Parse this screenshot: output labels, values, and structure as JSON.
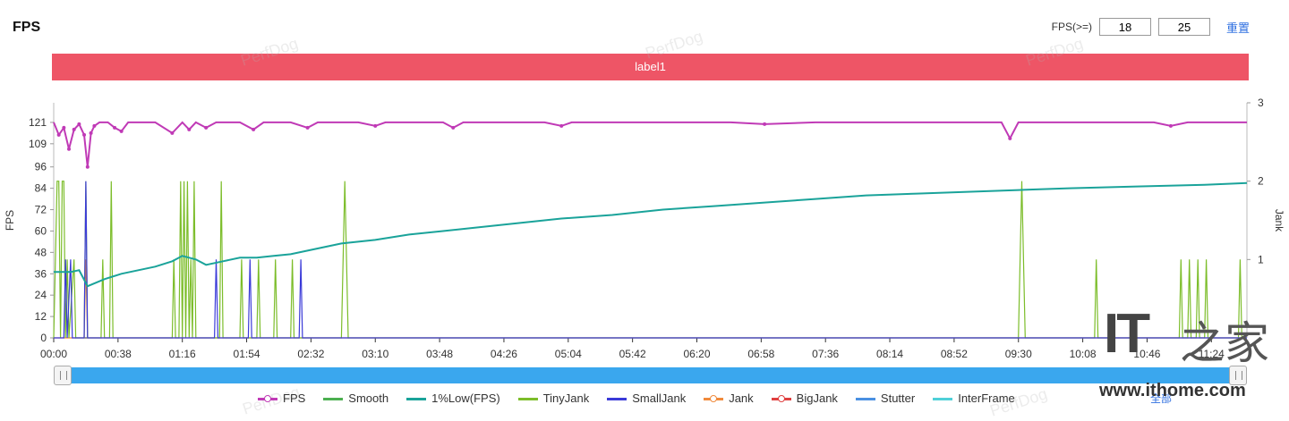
{
  "header": {
    "title": "FPS",
    "fps_label": "FPS(>=)",
    "fps_low": "18",
    "fps_high": "25",
    "reset_label": "重置"
  },
  "label_bar": {
    "text": "label1"
  },
  "watermark": "PerfDog",
  "logo": {
    "it": "IT",
    "cn": "之家",
    "url": "www.ithome.com"
  },
  "zoom_link": "全部",
  "colors": {
    "fps": "#c03ab6",
    "smooth": "#4caf50",
    "low": "#1aa39a",
    "tiny": "#7cbd2a",
    "small": "#3a3ad8",
    "jank": "#f08a3c",
    "big": "#e04040",
    "stutter": "#4a90e2",
    "inter": "#4fd0d8"
  },
  "legend": [
    {
      "name": "FPS",
      "color": "#c03ab6",
      "dot": true
    },
    {
      "name": "Smooth",
      "color": "#4caf50",
      "dot": false
    },
    {
      "name": "1%Low(FPS)",
      "color": "#1aa39a",
      "dot": false
    },
    {
      "name": "TinyJank",
      "color": "#7cbd2a",
      "dot": false
    },
    {
      "name": "SmallJank",
      "color": "#3a3ad8",
      "dot": false
    },
    {
      "name": "Jank",
      "color": "#f08a3c",
      "dot": true
    },
    {
      "name": "BigJank",
      "color": "#e04040",
      "dot": true
    },
    {
      "name": "Stutter",
      "color": "#4a90e2",
      "dot": false
    },
    {
      "name": "InterFrame",
      "color": "#4fd0d8",
      "dot": false
    }
  ],
  "chart_data": {
    "type": "line",
    "ylabel": "FPS",
    "y2label": "Jank",
    "y_ticks": [
      0,
      12,
      24,
      36,
      48,
      60,
      72,
      84,
      96,
      109,
      121
    ],
    "ylim": [
      0,
      132
    ],
    "y2_ticks": [
      1,
      2,
      3
    ],
    "y2lim": [
      0,
      3
    ],
    "x_ticks": [
      "00:00",
      "00:38",
      "01:16",
      "01:54",
      "02:32",
      "03:10",
      "03:48",
      "04:26",
      "05:04",
      "05:42",
      "06:20",
      "06:58",
      "07:36",
      "08:14",
      "08:52",
      "09:30",
      "10:08",
      "10:46",
      "11:24"
    ],
    "xlim_seconds": [
      0,
      705
    ],
    "series": [
      {
        "name": "FPS",
        "axis": "left",
        "points": [
          [
            0,
            121
          ],
          [
            3,
            114
          ],
          [
            6,
            118
          ],
          [
            9,
            106
          ],
          [
            12,
            117
          ],
          [
            15,
            120
          ],
          [
            18,
            114
          ],
          [
            20,
            96
          ],
          [
            22,
            115
          ],
          [
            24,
            119
          ],
          [
            27,
            121
          ],
          [
            32,
            121
          ],
          [
            36,
            118
          ],
          [
            40,
            116
          ],
          [
            44,
            121
          ],
          [
            60,
            121
          ],
          [
            70,
            115
          ],
          [
            76,
            121
          ],
          [
            80,
            117
          ],
          [
            84,
            121
          ],
          [
            90,
            118
          ],
          [
            96,
            121
          ],
          [
            110,
            121
          ],
          [
            118,
            117
          ],
          [
            124,
            121
          ],
          [
            140,
            121
          ],
          [
            150,
            118
          ],
          [
            156,
            121
          ],
          [
            180,
            121
          ],
          [
            190,
            119
          ],
          [
            196,
            121
          ],
          [
            230,
            121
          ],
          [
            236,
            118
          ],
          [
            242,
            121
          ],
          [
            290,
            121
          ],
          [
            300,
            119
          ],
          [
            306,
            121
          ],
          [
            400,
            121
          ],
          [
            420,
            120
          ],
          [
            450,
            121
          ],
          [
            560,
            121
          ],
          [
            565,
            112
          ],
          [
            570,
            121
          ],
          [
            620,
            121
          ],
          [
            650,
            121
          ],
          [
            660,
            119
          ],
          [
            670,
            121
          ],
          [
            705,
            121
          ]
        ]
      },
      {
        "name": "1%Low(FPS)",
        "axis": "left",
        "points": [
          [
            0,
            37
          ],
          [
            5,
            37
          ],
          [
            10,
            37
          ],
          [
            15,
            38
          ],
          [
            20,
            29
          ],
          [
            30,
            33
          ],
          [
            40,
            36
          ],
          [
            50,
            38
          ],
          [
            60,
            40
          ],
          [
            70,
            43
          ],
          [
            76,
            46
          ],
          [
            84,
            44
          ],
          [
            90,
            41
          ],
          [
            100,
            43
          ],
          [
            110,
            45
          ],
          [
            120,
            45
          ],
          [
            130,
            46
          ],
          [
            140,
            47
          ],
          [
            150,
            49
          ],
          [
            160,
            51
          ],
          [
            170,
            53
          ],
          [
            190,
            55
          ],
          [
            210,
            58
          ],
          [
            230,
            60
          ],
          [
            250,
            62
          ],
          [
            270,
            64
          ],
          [
            300,
            67
          ],
          [
            330,
            69
          ],
          [
            360,
            72
          ],
          [
            390,
            74
          ],
          [
            420,
            76
          ],
          [
            450,
            78
          ],
          [
            480,
            80
          ],
          [
            510,
            81
          ],
          [
            540,
            82
          ],
          [
            570,
            83
          ],
          [
            600,
            84
          ],
          [
            640,
            85
          ],
          [
            680,
            86
          ],
          [
            705,
            87
          ]
        ]
      },
      {
        "name": "TinyJank",
        "axis": "right",
        "points": [
          [
            0,
            0
          ],
          [
            2,
            2
          ],
          [
            3,
            2
          ],
          [
            4,
            0
          ],
          [
            5,
            2
          ],
          [
            6,
            2
          ],
          [
            7,
            0
          ],
          [
            8,
            1
          ],
          [
            9,
            0
          ],
          [
            12,
            1
          ],
          [
            13,
            0
          ],
          [
            18,
            0
          ],
          [
            19,
            2
          ],
          [
            20,
            0
          ],
          [
            28,
            0
          ],
          [
            29,
            1
          ],
          [
            30,
            0
          ],
          [
            33,
            0
          ],
          [
            34,
            2
          ],
          [
            35,
            0
          ],
          [
            70,
            0
          ],
          [
            71,
            1
          ],
          [
            72,
            0
          ],
          [
            74,
            0
          ],
          [
            75,
            2
          ],
          [
            76,
            0
          ],
          [
            77,
            2
          ],
          [
            78,
            0
          ],
          [
            79,
            2
          ],
          [
            80,
            0
          ],
          [
            81,
            1
          ],
          [
            82,
            0
          ],
          [
            83,
            2
          ],
          [
            84,
            0
          ],
          [
            98,
            0
          ],
          [
            99,
            2
          ],
          [
            100,
            0
          ],
          [
            110,
            0
          ],
          [
            111,
            1
          ],
          [
            112,
            0
          ],
          [
            120,
            0
          ],
          [
            121,
            1
          ],
          [
            122,
            0
          ],
          [
            130,
            0
          ],
          [
            131,
            1
          ],
          [
            132,
            0
          ],
          [
            140,
            0
          ],
          [
            141,
            1
          ],
          [
            142,
            0
          ],
          [
            170,
            0
          ],
          [
            172,
            2
          ],
          [
            174,
            0
          ],
          [
            570,
            0
          ],
          [
            572,
            2
          ],
          [
            574,
            0
          ],
          [
            615,
            0
          ],
          [
            616,
            1
          ],
          [
            617,
            0
          ],
          [
            665,
            0
          ],
          [
            666,
            1
          ],
          [
            667,
            0
          ],
          [
            670,
            0
          ],
          [
            671,
            1
          ],
          [
            672,
            0
          ],
          [
            675,
            0
          ],
          [
            676,
            1
          ],
          [
            677,
            0
          ],
          [
            680,
            0
          ],
          [
            681,
            1
          ],
          [
            682,
            0
          ],
          [
            700,
            0
          ],
          [
            701,
            1
          ],
          [
            702,
            0
          ],
          [
            705,
            0
          ]
        ]
      },
      {
        "name": "SmallJank",
        "axis": "right",
        "points": [
          [
            0,
            0
          ],
          [
            6,
            0
          ],
          [
            7,
            1
          ],
          [
            8,
            0
          ],
          [
            10,
            1
          ],
          [
            11,
            0
          ],
          [
            18,
            0
          ],
          [
            19,
            2
          ],
          [
            20,
            0
          ],
          [
            95,
            0
          ],
          [
            96,
            1
          ],
          [
            97,
            0
          ],
          [
            115,
            0
          ],
          [
            116,
            1
          ],
          [
            117,
            0
          ],
          [
            145,
            0
          ],
          [
            146,
            1
          ],
          [
            147,
            0
          ],
          [
            705,
            0
          ]
        ]
      },
      {
        "name": "Jank",
        "axis": "right",
        "points": [
          [
            0,
            0
          ],
          [
            18,
            0
          ],
          [
            19,
            1
          ],
          [
            20,
            0
          ],
          [
            705,
            0
          ]
        ]
      }
    ]
  }
}
